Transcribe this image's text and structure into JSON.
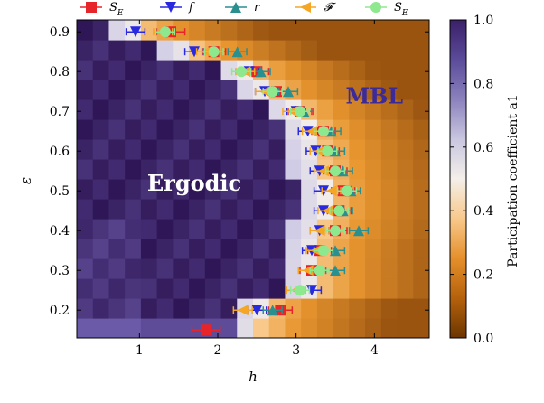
{
  "chart_data": {
    "type": "heatmap",
    "xlabel": "h",
    "ylabel": "ε",
    "xlim": [
      0.2,
      4.7
    ],
    "ylim": [
      0.13,
      0.93
    ],
    "x_ticks": [
      1,
      2,
      3,
      4
    ],
    "y_ticks": [
      0.2,
      0.3,
      0.4,
      0.5,
      0.6,
      0.7,
      0.8,
      0.9
    ],
    "colorbar": {
      "label": "Participation coefficient a1",
      "min": 0.0,
      "max": 1.0,
      "ticks": [
        "0.0",
        "0.2",
        "0.4",
        "0.6",
        "0.8",
        "1.0"
      ],
      "stops": [
        "#3b2068",
        "#5b4b9a",
        "#8b82bd",
        "#c9c6e0",
        "#f4efe9",
        "#f8c98b",
        "#e58f2b",
        "#b5610c",
        "#6b3600"
      ]
    },
    "regions": [
      {
        "label": "Ergodic",
        "x": 1.7,
        "y": 0.5,
        "color": "#ffffff"
      },
      {
        "label": "MBL",
        "x": 4.0,
        "y": 0.72,
        "color": "#3b2a9a"
      }
    ],
    "grid": {
      "x_min": 0.2,
      "x_max": 4.7,
      "nx": 22,
      "y_min": 0.13,
      "y_max": 0.93,
      "ny": 16,
      "ergodic_color": "#2f1656",
      "transition_color": "#f4efe9",
      "mbl_color": "#e8962f",
      "deep_mbl_color": "#9a5410"
    },
    "legend": [
      {
        "label": "S_E",
        "marker": "square",
        "color": "#e8242b"
      },
      {
        "label": "f",
        "marker": "triangle-down",
        "color": "#2929e0"
      },
      {
        "label": "r",
        "marker": "triangle-up",
        "color": "#2a8f8f"
      },
      {
        "label": "𝓕",
        "marker": "triangle-left",
        "color": "#f5a623"
      },
      {
        "label": "S_E",
        "marker": "circle",
        "color": "#8ee88e"
      }
    ],
    "series": [
      {
        "name": "S_E",
        "marker": "square",
        "color": "#e8242b",
        "points": [
          {
            "x": 1.85,
            "y": 0.15,
            "xerr": 0.18
          },
          {
            "x": 2.8,
            "y": 0.2,
            "xerr": 0.15
          },
          {
            "x": 3.2,
            "y": 0.3,
            "xerr": 0.15
          },
          {
            "x": 3.3,
            "y": 0.35,
            "xerr": 0.15
          },
          {
            "x": 3.5,
            "y": 0.4,
            "xerr": 0.15
          },
          {
            "x": 3.55,
            "y": 0.45,
            "xerr": 0.15
          },
          {
            "x": 3.6,
            "y": 0.5,
            "xerr": 0.15
          },
          {
            "x": 3.5,
            "y": 0.55,
            "xerr": 0.15
          },
          {
            "x": 3.4,
            "y": 0.6,
            "xerr": 0.15
          },
          {
            "x": 3.35,
            "y": 0.65,
            "xerr": 0.15
          },
          {
            "x": 3.05,
            "y": 0.7,
            "xerr": 0.15
          },
          {
            "x": 2.75,
            "y": 0.75,
            "xerr": 0.15
          },
          {
            "x": 2.5,
            "y": 0.8,
            "xerr": 0.15
          },
          {
            "x": 1.95,
            "y": 0.85,
            "xerr": 0.15
          },
          {
            "x": 1.4,
            "y": 0.9,
            "xerr": 0.18
          }
        ]
      },
      {
        "name": "f",
        "marker": "triangle-down",
        "color": "#2929e0",
        "points": [
          {
            "x": 2.5,
            "y": 0.2
          },
          {
            "x": 3.2,
            "y": 0.25
          },
          {
            "x": 3.2,
            "y": 0.35
          },
          {
            "x": 3.3,
            "y": 0.4
          },
          {
            "x": 3.35,
            "y": 0.45
          },
          {
            "x": 3.35,
            "y": 0.5
          },
          {
            "x": 3.3,
            "y": 0.55
          },
          {
            "x": 3.25,
            "y": 0.6
          },
          {
            "x": 3.15,
            "y": 0.65
          },
          {
            "x": 3.0,
            "y": 0.7
          },
          {
            "x": 2.6,
            "y": 0.75
          },
          {
            "x": 2.4,
            "y": 0.8
          },
          {
            "x": 1.7,
            "y": 0.85
          },
          {
            "x": 0.95,
            "y": 0.9
          }
        ]
      },
      {
        "name": "r",
        "marker": "triangle-up",
        "color": "#2a8f8f",
        "points": [
          {
            "x": 2.7,
            "y": 0.2
          },
          {
            "x": 3.5,
            "y": 0.3
          },
          {
            "x": 3.5,
            "y": 0.35
          },
          {
            "x": 3.8,
            "y": 0.4
          },
          {
            "x": 3.6,
            "y": 0.45
          },
          {
            "x": 3.7,
            "y": 0.5
          },
          {
            "x": 3.6,
            "y": 0.55
          },
          {
            "x": 3.5,
            "y": 0.6
          },
          {
            "x": 3.45,
            "y": 0.65
          },
          {
            "x": 3.1,
            "y": 0.7
          },
          {
            "x": 2.9,
            "y": 0.75
          },
          {
            "x": 2.55,
            "y": 0.8
          },
          {
            "x": 2.25,
            "y": 0.85
          }
        ]
      },
      {
        "name": "𝓕",
        "marker": "triangle-left",
        "color": "#f5a623",
        "points": [
          {
            "x": 2.32,
            "y": 0.2
          },
          {
            "x": 3.0,
            "y": 0.25
          },
          {
            "x": 3.15,
            "y": 0.3
          },
          {
            "x": 3.25,
            "y": 0.35
          },
          {
            "x": 3.3,
            "y": 0.4
          },
          {
            "x": 3.4,
            "y": 0.45
          },
          {
            "x": 3.45,
            "y": 0.5
          },
          {
            "x": 3.35,
            "y": 0.55
          },
          {
            "x": 3.3,
            "y": 0.6
          },
          {
            "x": 3.2,
            "y": 0.65
          },
          {
            "x": 2.95,
            "y": 0.7
          },
          {
            "x": 2.6,
            "y": 0.75
          },
          {
            "x": 2.35,
            "y": 0.8
          },
          {
            "x": 1.85,
            "y": 0.85
          },
          {
            "x": 1.3,
            "y": 0.9
          }
        ]
      },
      {
        "name": "S_E",
        "marker": "circle",
        "color": "#8ee88e",
        "points": [
          {
            "x": 3.05,
            "y": 0.25
          },
          {
            "x": 3.3,
            "y": 0.3
          },
          {
            "x": 3.35,
            "y": 0.35
          },
          {
            "x": 3.5,
            "y": 0.4
          },
          {
            "x": 3.55,
            "y": 0.45
          },
          {
            "x": 3.65,
            "y": 0.5
          },
          {
            "x": 3.5,
            "y": 0.55
          },
          {
            "x": 3.4,
            "y": 0.6
          },
          {
            "x": 3.35,
            "y": 0.65
          },
          {
            "x": 3.05,
            "y": 0.7
          },
          {
            "x": 2.7,
            "y": 0.75
          },
          {
            "x": 2.3,
            "y": 0.8
          },
          {
            "x": 1.95,
            "y": 0.85
          },
          {
            "x": 1.33,
            "y": 0.9
          }
        ]
      }
    ]
  }
}
